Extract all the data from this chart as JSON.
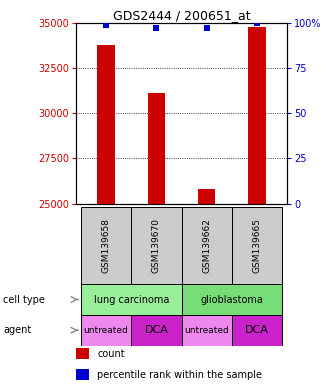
{
  "title": "GDS2444 / 200651_at",
  "samples": [
    "GSM139658",
    "GSM139670",
    "GSM139662",
    "GSM139665"
  ],
  "counts": [
    33800,
    31100,
    25800,
    34800
  ],
  "percentiles": [
    99,
    97,
    97,
    100
  ],
  "ylim_left": [
    25000,
    35000
  ],
  "ylim_right": [
    0,
    100
  ],
  "yticks_left": [
    25000,
    27500,
    30000,
    32500,
    35000
  ],
  "yticks_right": [
    0,
    25,
    50,
    75,
    100
  ],
  "bar_color": "#cc0000",
  "marker_color": "#0000cc",
  "agents": [
    "untreated",
    "DCA",
    "untreated",
    "DCA"
  ],
  "agent_color_untreated": "#ee88ee",
  "agent_color_dca": "#cc22cc",
  "cell_type_color_lung": "#99ee99",
  "cell_type_color_glio": "#77dd77",
  "sample_box_color": "#cccccc",
  "bar_width": 0.35,
  "title_fontsize": 9,
  "tick_fontsize": 7,
  "label_fontsize": 7,
  "legend_fontsize": 7
}
